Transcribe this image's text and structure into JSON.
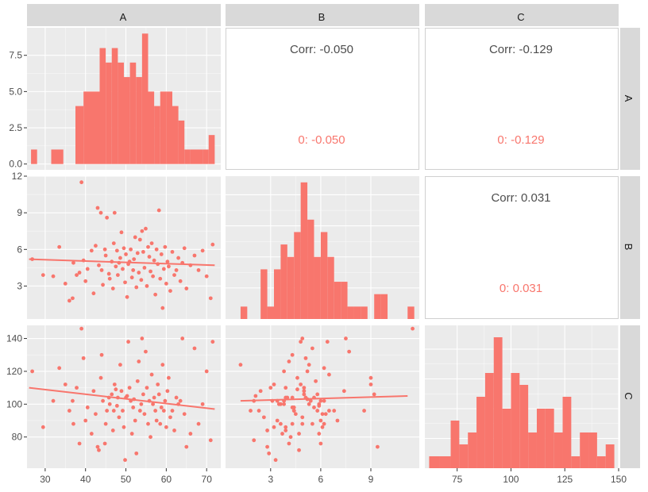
{
  "columns": [
    "A",
    "B",
    "C"
  ],
  "rows": [
    "A",
    "B",
    "C"
  ],
  "colors": {
    "accent": "#f8766d",
    "panel_bg": "#ebebeb",
    "strip_bg": "#d9d9d9",
    "corr_text": "#4d4d4d",
    "grid": "#ffffff"
  },
  "correlations": [
    {
      "row": 0,
      "col": 1,
      "overall": "Corr: -0.050",
      "group": "0: -0.050"
    },
    {
      "row": 0,
      "col": 2,
      "overall": "Corr: -0.129",
      "group": "0: -0.129"
    },
    {
      "row": 1,
      "col": 2,
      "overall": "Corr: 0.031",
      "group": "0: 0.031"
    }
  ],
  "chart_data": {
    "type": "scatter",
    "variables": [
      "A",
      "B",
      "C"
    ],
    "axes": {
      "A": {
        "lim": [
          25.5,
          73.5
        ],
        "ticks": [
          30,
          40,
          50,
          60,
          70
        ]
      },
      "B": {
        "lim": [
          0.3,
          11.9
        ],
        "ticks": [
          3,
          6,
          9
        ]
      },
      "C": {
        "lim": [
          61,
          148
        ],
        "ticks": [
          80,
          100,
          120,
          140
        ]
      }
    },
    "x_tick_labels": {
      "A": [
        "30",
        "40",
        "50",
        "60",
        "70"
      ],
      "B": [
        "3",
        "6",
        "9"
      ],
      "C": [
        "75",
        "100",
        "125",
        "150"
      ]
    },
    "x_ticks_C": [
      75,
      100,
      125,
      150
    ],
    "x_lim_C": [
      60,
      150
    ],
    "y_tick_labels": {
      "A": [
        "0.0",
        "2.5",
        "5.0",
        "7.5"
      ],
      "B": [
        "3",
        "6",
        "9",
        "12"
      ],
      "C": [
        "80",
        "100",
        "120",
        "140"
      ]
    },
    "y_ticks_B": [
      3,
      6,
      9,
      12
    ],
    "y_lim_B": [
      0.3,
      12
    ],
    "hist_A": {
      "lim": [
        -0.4,
        9.4
      ],
      "ticks": [
        0,
        2.5,
        5,
        7.5
      ],
      "edges": [
        26.5,
        28,
        31.5,
        34.5,
        37.5,
        39.5,
        43.5,
        45,
        46.5,
        48,
        49.5,
        51,
        52.5,
        54,
        55.5,
        57,
        58.5,
        60,
        61.5,
        63,
        64.5,
        66,
        67.5,
        69,
        70.5,
        72
      ],
      "counts": [
        1,
        0,
        1,
        0,
        4,
        5,
        8,
        7,
        8,
        7,
        6,
        7,
        6,
        9,
        5,
        4,
        5,
        5,
        4,
        3,
        1,
        1,
        1,
        1,
        2
      ]
    },
    "hist_B": {
      "lim": [
        0,
        11.5
      ],
      "edges": [
        1.2,
        1.6,
        2.0,
        2.4,
        2.8,
        3.2,
        3.6,
        4.0,
        4.4,
        4.8,
        5.2,
        5.6,
        6.0,
        6.4,
        6.8,
        7.2,
        7.6,
        8.0,
        8.4,
        8.8,
        9.2,
        9.6,
        10.0,
        10.4,
        10.8,
        11.2,
        11.6
      ],
      "counts": [
        1,
        0,
        0,
        4,
        1,
        4,
        6,
        5,
        7,
        11,
        8,
        5,
        7,
        5,
        3,
        3,
        1,
        1,
        1,
        0,
        2,
        2,
        0,
        0,
        0,
        1
      ]
    },
    "hist_C": {
      "lim": [
        0,
        12
      ],
      "edges": [
        62,
        67,
        72,
        76,
        80,
        84,
        88,
        92,
        96,
        100,
        104,
        108,
        112,
        116,
        120,
        124,
        128,
        132,
        136,
        140,
        144,
        148
      ],
      "counts": [
        1,
        1,
        4,
        2,
        3,
        6,
        8,
        11,
        5,
        8,
        7,
        3,
        5,
        5,
        3,
        6,
        1,
        3,
        3,
        1,
        2
      ]
    },
    "fits": [
      {
        "x": "A",
        "y": "B",
        "from": [
          26,
          5.2
        ],
        "to": [
          72,
          4.7
        ]
      },
      {
        "x": "A",
        "y": "C",
        "from": [
          26,
          110
        ],
        "to": [
          72,
          97
        ]
      },
      {
        "x": "B",
        "y": "C",
        "from": [
          1.2,
          102
        ],
        "to": [
          11.2,
          105
        ]
      }
    ],
    "points": [
      {
        "A": 26.8,
        "B": 5.2,
        "C": 120
      },
      {
        "A": 29.5,
        "B": 3.9,
        "C": 86
      },
      {
        "A": 32,
        "B": 3.8,
        "C": 102
      },
      {
        "A": 33.5,
        "B": 6.2,
        "C": 122
      },
      {
        "A": 35,
        "B": 3.2,
        "C": 112
      },
      {
        "A": 36,
        "B": 1.8,
        "C": 96
      },
      {
        "A": 36.8,
        "B": 2.0,
        "C": 102
      },
      {
        "A": 37,
        "B": 4.9,
        "C": 88
      },
      {
        "A": 37.8,
        "B": 3.9,
        "C": 110
      },
      {
        "A": 38.5,
        "B": 4.1,
        "C": 76
      },
      {
        "A": 39,
        "B": 11.5,
        "C": 146
      },
      {
        "A": 39.5,
        "B": 5.1,
        "C": 128
      },
      {
        "A": 40,
        "B": 3.4,
        "C": 90
      },
      {
        "A": 40.5,
        "B": 4.4,
        "C": 98
      },
      {
        "A": 41.5,
        "B": 5.9,
        "C": 82
      },
      {
        "A": 42,
        "B": 2.4,
        "C": 108
      },
      {
        "A": 42.5,
        "B": 6.3,
        "C": 94
      },
      {
        "A": 43,
        "B": 9.4,
        "C": 74
      },
      {
        "A": 43.3,
        "B": 4.7,
        "C": 72
      },
      {
        "A": 43.8,
        "B": 9.0,
        "C": 116
      },
      {
        "A": 44,
        "B": 4.3,
        "C": 130
      },
      {
        "A": 44.3,
        "B": 3.1,
        "C": 102
      },
      {
        "A": 44.8,
        "B": 6.0,
        "C": 76
      },
      {
        "A": 45,
        "B": 5.5,
        "C": 88
      },
      {
        "A": 45.3,
        "B": 8.6,
        "C": 96
      },
      {
        "A": 45.8,
        "B": 4.0,
        "C": 104
      },
      {
        "A": 46,
        "B": 3.6,
        "C": 100
      },
      {
        "A": 46.5,
        "B": 5.0,
        "C": 106
      },
      {
        "A": 46.8,
        "B": 2.8,
        "C": 84
      },
      {
        "A": 47,
        "B": 6.5,
        "C": 96
      },
      {
        "A": 47.2,
        "B": 9.0,
        "C": 112
      },
      {
        "A": 47.5,
        "B": 4.6,
        "C": 109
      },
      {
        "A": 47.8,
        "B": 5.9,
        "C": 99
      },
      {
        "A": 48,
        "B": 3.9,
        "C": 104
      },
      {
        "A": 48.3,
        "B": 4.9,
        "C": 92
      },
      {
        "A": 48.6,
        "B": 5.3,
        "C": 124
      },
      {
        "A": 48.9,
        "B": 7.4,
        "C": 108
      },
      {
        "A": 49.2,
        "B": 4.4,
        "C": 96
      },
      {
        "A": 49.5,
        "B": 6.1,
        "C": 86
      },
      {
        "A": 49.8,
        "B": 3.3,
        "C": 66
      },
      {
        "A": 50,
        "B": 5.6,
        "C": 104
      },
      {
        "A": 50.3,
        "B": 2.1,
        "C": 105
      },
      {
        "A": 50.6,
        "B": 4.8,
        "C": 138
      },
      {
        "A": 50.9,
        "B": 5.0,
        "C": 110
      },
      {
        "A": 51.2,
        "B": 6.0,
        "C": 102
      },
      {
        "A": 51.5,
        "B": 3.7,
        "C": 82
      },
      {
        "A": 51.8,
        "B": 4.3,
        "C": 98
      },
      {
        "A": 52,
        "B": 5.2,
        "C": 103
      },
      {
        "A": 52.3,
        "B": 7.0,
        "C": 90
      },
      {
        "A": 52.6,
        "B": 2.9,
        "C": 70
      },
      {
        "A": 52.9,
        "B": 5.7,
        "C": 114
      },
      {
        "A": 53.2,
        "B": 4.1,
        "C": 126
      },
      {
        "A": 53.5,
        "B": 6.8,
        "C": 96
      },
      {
        "A": 53.8,
        "B": 3.5,
        "C": 100
      },
      {
        "A": 54,
        "B": 7.5,
        "C": 140
      },
      {
        "A": 54.3,
        "B": 5.8,
        "C": 106
      },
      {
        "A": 54.6,
        "B": 4.5,
        "C": 94
      },
      {
        "A": 54.9,
        "B": 7.7,
        "C": 132
      },
      {
        "A": 55.2,
        "B": 3.0,
        "C": 110
      },
      {
        "A": 55.5,
        "B": 6.2,
        "C": 88
      },
      {
        "A": 55.8,
        "B": 5.4,
        "C": 102
      },
      {
        "A": 56.1,
        "B": 4.2,
        "C": 80
      },
      {
        "A": 56.4,
        "B": 6.5,
        "C": 118
      },
      {
        "A": 56.7,
        "B": 3.8,
        "C": 100
      },
      {
        "A": 57,
        "B": 5.1,
        "C": 104
      },
      {
        "A": 57.3,
        "B": 2.3,
        "C": 96
      },
      {
        "A": 57.6,
        "B": 6.0,
        "C": 90
      },
      {
        "A": 57.9,
        "B": 4.8,
        "C": 112
      },
      {
        "A": 58.2,
        "B": 9.2,
        "C": 106
      },
      {
        "A": 58.5,
        "B": 3.6,
        "C": 88
      },
      {
        "A": 58.8,
        "B": 5.6,
        "C": 98
      },
      {
        "A": 59.1,
        "B": 1.2,
        "C": 124
      },
      {
        "A": 59.4,
        "B": 4.4,
        "C": 96
      },
      {
        "A": 59.7,
        "B": 6.2,
        "C": 102
      },
      {
        "A": 60,
        "B": 3.2,
        "C": 86
      },
      {
        "A": 60.3,
        "B": 5.0,
        "C": 108
      },
      {
        "A": 60.6,
        "B": 4.6,
        "C": 116
      },
      {
        "A": 61,
        "B": 2.6,
        "C": 92
      },
      {
        "A": 61.5,
        "B": 5.8,
        "C": 96
      },
      {
        "A": 62,
        "B": 3.9,
        "C": 84
      },
      {
        "A": 62.5,
        "B": 4.3,
        "C": 104
      },
      {
        "A": 63,
        "B": 5.3,
        "C": 100
      },
      {
        "A": 63.5,
        "B": 3.4,
        "C": 102
      },
      {
        "A": 64,
        "B": 4.9,
        "C": 140
      },
      {
        "A": 64.5,
        "B": 6.1,
        "C": 94
      },
      {
        "A": 65,
        "B": 2.8,
        "C": 74
      },
      {
        "A": 66,
        "B": 4.7,
        "C": 82
      },
      {
        "A": 67,
        "B": 5.5,
        "C": 134
      },
      {
        "A": 68,
        "B": 4.3,
        "C": 88
      },
      {
        "A": 69,
        "B": 5.9,
        "C": 100
      },
      {
        "A": 70,
        "B": 3.8,
        "C": 120
      },
      {
        "A": 71,
        "B": 2.0,
        "C": 78
      },
      {
        "A": 71.5,
        "B": 6.4,
        "C": 138
      }
    ]
  }
}
